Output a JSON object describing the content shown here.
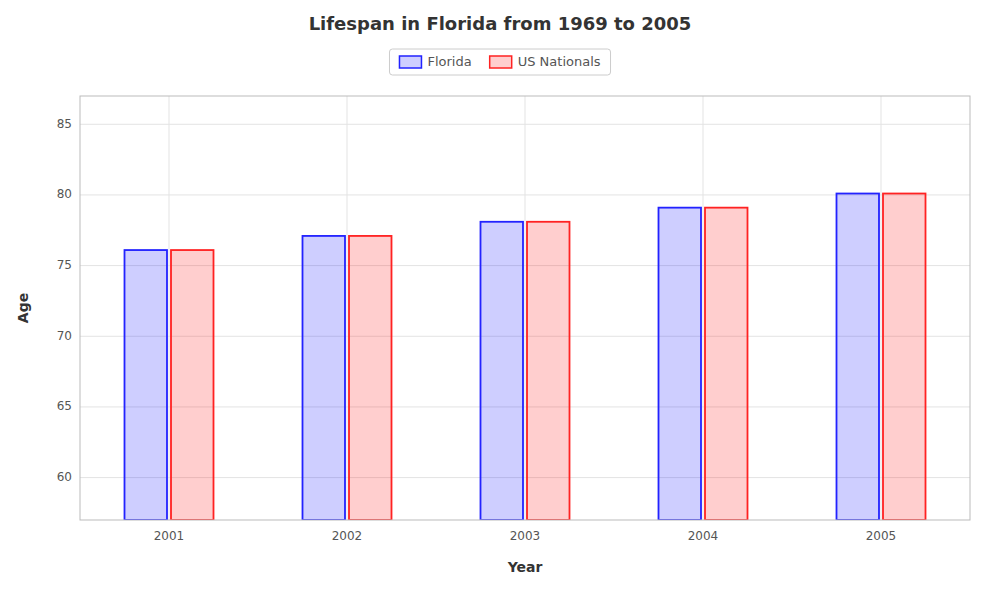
{
  "chart_data": {
    "type": "bar",
    "title": "Lifespan in Florida from 1969 to 2005",
    "xlabel": "Year",
    "ylabel": "Age",
    "categories": [
      "2001",
      "2002",
      "2003",
      "2004",
      "2005"
    ],
    "series": [
      {
        "name": "Florida",
        "color": "#2222ff",
        "values": [
          76.1,
          77.1,
          78.1,
          79.1,
          80.1
        ]
      },
      {
        "name": "US Nationals",
        "color": "#ff2222",
        "values": [
          76.1,
          77.1,
          78.1,
          79.1,
          80.1
        ]
      }
    ],
    "ylim": [
      57,
      87
    ],
    "yticks": [
      60,
      65,
      70,
      75,
      80,
      85
    ],
    "grid": true,
    "legend": "upper center"
  }
}
